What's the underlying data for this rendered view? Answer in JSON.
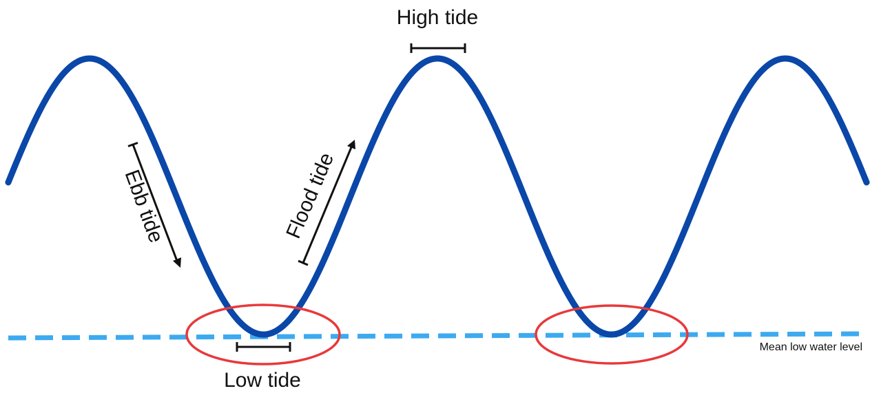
{
  "labels": {
    "high_tide": "High tide",
    "low_tide": "Low tide",
    "ebb_tide": "Ebb tide",
    "flood_tide": "Flood tide",
    "mean_low_water": "Mean low water level"
  },
  "colors": {
    "tide_curve": "#0a47a8",
    "mean_low_water_line": "#3daaf0",
    "low_tide_highlight": "#e8393b",
    "annotation": "#111111",
    "background": "#ffffff"
  }
}
